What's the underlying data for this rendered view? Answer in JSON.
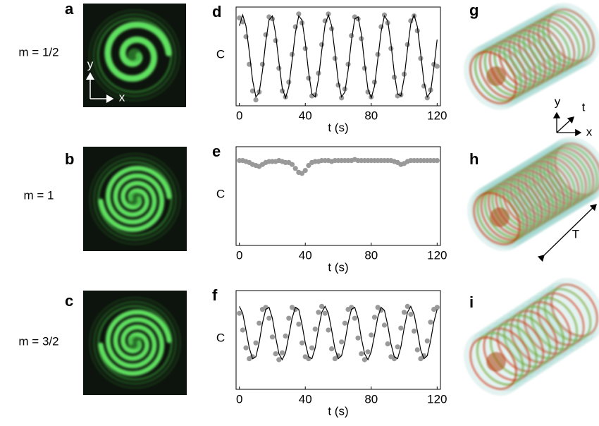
{
  "chart_data": [
    {
      "type": "line",
      "panel": "d",
      "ylabel": "C",
      "xlabel": "t (s)",
      "x": [
        0,
        2,
        4,
        6,
        8,
        10,
        12,
        14,
        16,
        18,
        20,
        22,
        24,
        26,
        28,
        30,
        32,
        34,
        36,
        38,
        40,
        42,
        44,
        46,
        48,
        50,
        52,
        54,
        56,
        58,
        60,
        62,
        64,
        66,
        68,
        70,
        72,
        74,
        76,
        78,
        80,
        82,
        84,
        86,
        88,
        90,
        92,
        94,
        96,
        98,
        100,
        102,
        104,
        106,
        108,
        110,
        112,
        114,
        116,
        118,
        120
      ],
      "xlim": [
        -2,
        122
      ],
      "xticks": [
        0,
        40,
        80,
        120
      ],
      "ylim": [
        0,
        1
      ],
      "series": [
        {
          "color": "#000000",
          "style": "line",
          "values": [
            0.81,
            0.92,
            0.81,
            0.55,
            0.26,
            0.09,
            0.13,
            0.35,
            0.65,
            0.87,
            0.91,
            0.73,
            0.44,
            0.18,
            0.08,
            0.19,
            0.46,
            0.74,
            0.91,
            0.87,
            0.64,
            0.34,
            0.12,
            0.09,
            0.27,
            0.56,
            0.82,
            0.92,
            0.81,
            0.54,
            0.25,
            0.09,
            0.14,
            0.36,
            0.66,
            0.88,
            0.9,
            0.73,
            0.43,
            0.17,
            0.08,
            0.2,
            0.47,
            0.75,
            0.91,
            0.86,
            0.63,
            0.33,
            0.12,
            0.1,
            0.28,
            0.57,
            0.83,
            0.92,
            0.8,
            0.53,
            0.24,
            0.09,
            0.14,
            0.38,
            0.67
          ]
        },
        {
          "color": "#999999",
          "style": "markers",
          "values": [
            0.89,
            0.85,
            0.7,
            0.42,
            0.15,
            0.06,
            0.14,
            0.42,
            0.72,
            0.9,
            0.88,
            0.66,
            0.38,
            0.15,
            0.09,
            0.24,
            0.52,
            0.8,
            0.93,
            0.84,
            0.58,
            0.28,
            0.1,
            0.11,
            0.33,
            0.62,
            0.86,
            0.93,
            0.78,
            0.48,
            0.21,
            0.08,
            0.17,
            0.42,
            0.71,
            0.9,
            0.88,
            0.68,
            0.38,
            0.14,
            0.09,
            0.24,
            0.52,
            0.8,
            0.92,
            0.84,
            0.58,
            0.29,
            0.1,
            0.11,
            0.32,
            0.62,
            0.86,
            0.91,
            0.76,
            0.48,
            0.2,
            0.08,
            0.16,
            0.42,
            0.4
          ]
        }
      ]
    },
    {
      "type": "line",
      "panel": "e",
      "ylabel": "C",
      "xlabel": "t (s)",
      "x": [
        0,
        2,
        4,
        6,
        8,
        10,
        12,
        14,
        16,
        18,
        20,
        22,
        24,
        26,
        28,
        30,
        32,
        34,
        36,
        38,
        40,
        42,
        44,
        46,
        48,
        50,
        52,
        54,
        56,
        58,
        60,
        62,
        64,
        66,
        68,
        70,
        72,
        74,
        76,
        78,
        80,
        82,
        84,
        86,
        88,
        90,
        92,
        94,
        96,
        98,
        100,
        102,
        104,
        106,
        108,
        110,
        112,
        114,
        116,
        118,
        120
      ],
      "xlim": [
        -2,
        122
      ],
      "xticks": [
        0,
        40,
        80,
        120
      ],
      "ylim": [
        0,
        1
      ],
      "series": [
        {
          "color": "#999999",
          "style": "markers",
          "values": [
            0.86,
            0.86,
            0.85,
            0.84,
            0.82,
            0.81,
            0.8,
            0.82,
            0.84,
            0.85,
            0.85,
            0.85,
            0.86,
            0.85,
            0.84,
            0.84,
            0.82,
            0.78,
            0.74,
            0.73,
            0.76,
            0.81,
            0.84,
            0.85,
            0.85,
            0.86,
            0.86,
            0.86,
            0.85,
            0.86,
            0.86,
            0.86,
            0.86,
            0.86,
            0.86,
            0.87,
            0.86,
            0.86,
            0.86,
            0.86,
            0.86,
            0.86,
            0.86,
            0.86,
            0.86,
            0.86,
            0.86,
            0.85,
            0.84,
            0.82,
            0.83,
            0.85,
            0.86,
            0.86,
            0.86,
            0.86,
            0.86,
            0.86,
            0.86,
            0.86,
            0.86
          ]
        }
      ]
    },
    {
      "type": "line",
      "panel": "f",
      "ylabel": "C",
      "xlabel": "t (s)",
      "x": [
        0,
        2,
        4,
        6,
        8,
        10,
        12,
        14,
        16,
        18,
        20,
        22,
        24,
        26,
        28,
        30,
        32,
        34,
        36,
        38,
        40,
        42,
        44,
        46,
        48,
        50,
        52,
        54,
        56,
        58,
        60,
        62,
        64,
        66,
        68,
        70,
        72,
        74,
        76,
        78,
        80,
        82,
        84,
        86,
        88,
        90,
        92,
        94,
        96,
        98,
        100,
        102,
        104,
        106,
        108,
        110,
        112,
        114,
        116,
        118,
        120
      ],
      "xlim": [
        -2,
        122
      ],
      "xticks": [
        0,
        40,
        80,
        120
      ],
      "ylim": [
        0,
        1
      ],
      "series": [
        {
          "color": "#000000",
          "style": "line",
          "values": [
            0.84,
            0.77,
            0.6,
            0.42,
            0.31,
            0.33,
            0.47,
            0.67,
            0.81,
            0.83,
            0.72,
            0.53,
            0.36,
            0.3,
            0.37,
            0.54,
            0.72,
            0.83,
            0.81,
            0.66,
            0.47,
            0.33,
            0.31,
            0.42,
            0.61,
            0.78,
            0.84,
            0.77,
            0.6,
            0.41,
            0.31,
            0.34,
            0.48,
            0.67,
            0.81,
            0.83,
            0.72,
            0.52,
            0.36,
            0.3,
            0.38,
            0.55,
            0.73,
            0.83,
            0.8,
            0.65,
            0.46,
            0.33,
            0.31,
            0.43,
            0.62,
            0.78,
            0.84,
            0.76,
            0.59,
            0.4,
            0.31,
            0.34,
            0.49,
            0.68,
            0.81
          ]
        },
        {
          "color": "#999999",
          "style": "markers",
          "values": [
            0.77,
            0.6,
            0.42,
            0.31,
            0.33,
            0.47,
            0.67,
            0.81,
            0.83,
            0.72,
            0.53,
            0.36,
            0.3,
            0.37,
            0.54,
            0.72,
            0.83,
            0.81,
            0.66,
            0.47,
            0.33,
            0.31,
            0.42,
            0.61,
            0.78,
            0.84,
            0.77,
            0.6,
            0.41,
            0.31,
            0.34,
            0.48,
            0.67,
            0.81,
            0.83,
            0.72,
            0.52,
            0.36,
            0.3,
            0.38,
            0.55,
            0.73,
            0.83,
            0.8,
            0.65,
            0.46,
            0.33,
            0.31,
            0.43,
            0.62,
            0.78,
            0.84,
            0.76,
            0.59,
            0.4,
            0.31,
            0.34,
            0.49,
            0.68,
            0.81,
            0.83
          ]
        }
      ]
    }
  ],
  "images": [
    {
      "panel": "a",
      "m": "m = 1/2",
      "axis_y": "y",
      "axis_x": "x"
    },
    {
      "panel": "b",
      "m": "m = 1"
    },
    {
      "panel": "c",
      "m": "m = 3/2"
    }
  ],
  "volumes": [
    {
      "panel": "g",
      "axis_y": "y",
      "axis_t": "t",
      "axis_x": "x"
    },
    {
      "panel": "h",
      "length": "T"
    },
    {
      "panel": "i"
    }
  ]
}
